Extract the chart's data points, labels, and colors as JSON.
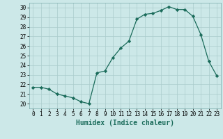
{
  "x": [
    0,
    1,
    2,
    3,
    4,
    5,
    6,
    7,
    8,
    9,
    10,
    11,
    12,
    13,
    14,
    15,
    16,
    17,
    18,
    19,
    20,
    21,
    22,
    23
  ],
  "y": [
    21.7,
    21.7,
    21.5,
    21.0,
    20.8,
    20.6,
    20.2,
    20.0,
    23.2,
    23.4,
    24.8,
    25.8,
    26.5,
    28.8,
    29.3,
    29.4,
    29.7,
    30.1,
    29.8,
    29.8,
    29.1,
    27.2,
    24.4,
    22.9
  ],
  "line_color": "#1a6b5a",
  "marker": "D",
  "marker_size": 2.2,
  "bg_color": "#cce8e8",
  "grid_color": "#aacccc",
  "xlabel": "Humidex (Indice chaleur)",
  "xlim": [
    -0.5,
    23.5
  ],
  "ylim": [
    19.5,
    30.5
  ],
  "yticks": [
    20,
    21,
    22,
    23,
    24,
    25,
    26,
    27,
    28,
    29,
    30
  ],
  "xticks": [
    0,
    1,
    2,
    3,
    4,
    5,
    6,
    7,
    8,
    9,
    10,
    11,
    12,
    13,
    14,
    15,
    16,
    17,
    18,
    19,
    20,
    21,
    22,
    23
  ],
  "tick_labelsize": 5.5,
  "xlabel_fontsize": 7,
  "linewidth": 0.9
}
